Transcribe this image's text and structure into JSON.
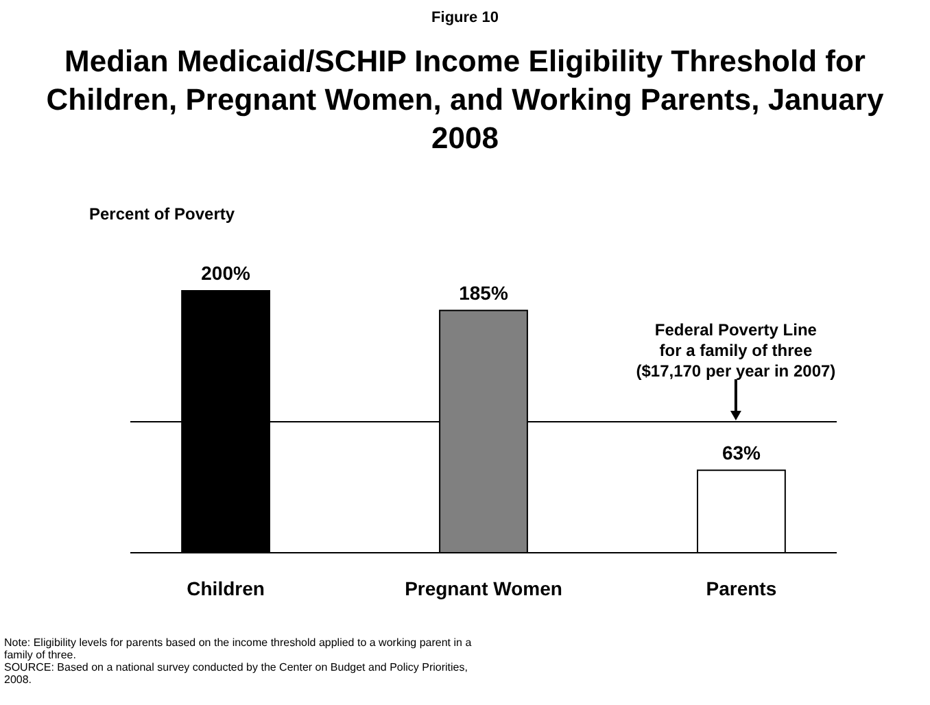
{
  "chart_data": {
    "type": "bar",
    "subtitle": "Figure 10",
    "title": "Median Medicaid/SCHIP Income Eligibility Threshold for Children, Pregnant Women, and Working Parents, January 2008",
    "ylabel": "Percent of Poverty",
    "categories": [
      "Children",
      "Pregnant Women",
      "Parents"
    ],
    "values": [
      200,
      185,
      63
    ],
    "colors": [
      "#000000",
      "#808080",
      "#ffffff"
    ],
    "value_labels": [
      "200%",
      "185%",
      "63%"
    ],
    "ref_lines": [
      {
        "axis": "y",
        "value": 100,
        "label": "Federal Poverty Line\nfor a family of three\n($17,170 per year in 2007)",
        "color": "#000000"
      }
    ],
    "annotations": [
      "Note: Eligibility levels for parents based on the income threshold applied to a working parent in a family of three.",
      "SOURCE: Based on a national survey conducted by the Center on Budget and Policy Priorities, 2008."
    ]
  }
}
